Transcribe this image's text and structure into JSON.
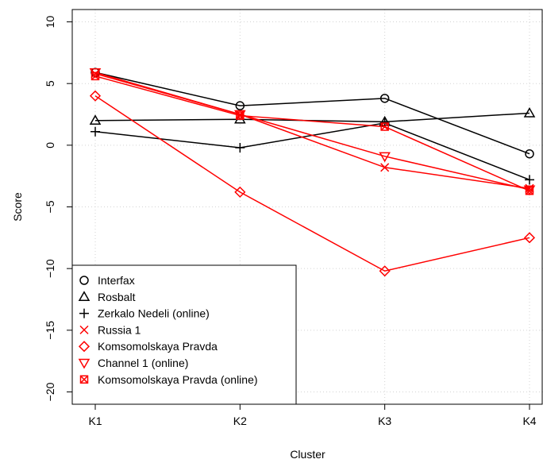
{
  "chart_data": {
    "type": "line",
    "xlabel": "Cluster",
    "ylabel": "Score",
    "categories": [
      "K1",
      "K2",
      "K3",
      "K4"
    ],
    "ylim": [
      -21,
      11
    ],
    "yticks": [
      10,
      5,
      0,
      -5,
      -10,
      -15,
      -20
    ],
    "ytick_labels": [
      "10",
      "5",
      "0",
      "−5",
      "−10",
      "−15",
      "−20"
    ],
    "grid": true,
    "legend_position": "bottom-left",
    "series": [
      {
        "name": "Interfax",
        "color": "#000000",
        "marker": "circle",
        "values": [
          5.9,
          3.2,
          3.8,
          -0.7
        ]
      },
      {
        "name": "Rosbalt",
        "color": "#000000",
        "marker": "triangle-up",
        "values": [
          2.0,
          2.1,
          1.9,
          2.6
        ]
      },
      {
        "name": "Zerkalo Nedeli (online)",
        "color": "#000000",
        "marker": "plus",
        "values": [
          1.1,
          -0.2,
          1.8,
          -2.8
        ]
      },
      {
        "name": "Russia 1",
        "color": "#ff0000",
        "marker": "cross",
        "values": [
          5.8,
          2.5,
          -1.8,
          -3.5
        ]
      },
      {
        "name": "Komsomolskaya Pravda",
        "color": "#ff0000",
        "marker": "diamond",
        "values": [
          4.0,
          -3.8,
          -10.2,
          -7.5
        ]
      },
      {
        "name": "Channel 1 (online)",
        "color": "#ff0000",
        "marker": "triangle-down",
        "values": [
          5.9,
          2.5,
          -0.9,
          -3.6
        ]
      },
      {
        "name": "Komsomolskaya Pravda (online)",
        "color": "#ff0000",
        "marker": "square-cross",
        "values": [
          5.6,
          2.4,
          1.5,
          -3.7
        ]
      }
    ]
  }
}
